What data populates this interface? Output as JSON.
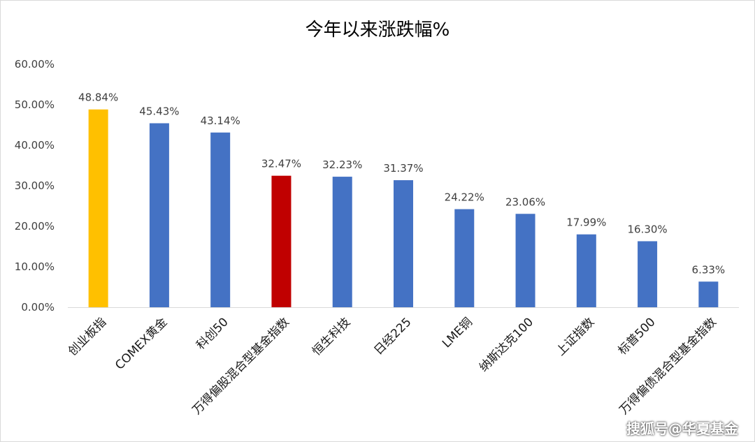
{
  "chart_data": {
    "type": "bar",
    "title": "今年以来涨跌幅%",
    "categories": [
      "创业板指",
      "COMEX黄金",
      "科创50",
      "万得偏股混合型基金指数",
      "恒生科技",
      "日经225",
      "LME铜",
      "纳斯达克100",
      "上证指数",
      "标普500",
      "万得偏债混合型基金指数"
    ],
    "values": [
      48.84,
      45.43,
      43.14,
      32.47,
      32.23,
      31.37,
      24.22,
      23.06,
      17.99,
      16.3,
      6.33
    ],
    "data_labels": [
      "48.84%",
      "45.43%",
      "43.14%",
      "32.47%",
      "32.23%",
      "31.37%",
      "24.22%",
      "23.06%",
      "17.99%",
      "16.30%",
      "6.33%"
    ],
    "bar_colors": [
      "#FFC000",
      "#4472C4",
      "#4472C4",
      "#C00000",
      "#4472C4",
      "#4472C4",
      "#4472C4",
      "#4472C4",
      "#4472C4",
      "#4472C4",
      "#4472C4"
    ],
    "ylim": [
      0,
      60
    ],
    "y_ticks": [
      0,
      10,
      20,
      30,
      40,
      50,
      60
    ],
    "y_tick_labels": [
      "0.00%",
      "10.00%",
      "20.00%",
      "30.00%",
      "40.00%",
      "50.00%",
      "60.00%"
    ],
    "grid": false,
    "legend": "none"
  },
  "watermark": "搜狐号@华夏基金"
}
